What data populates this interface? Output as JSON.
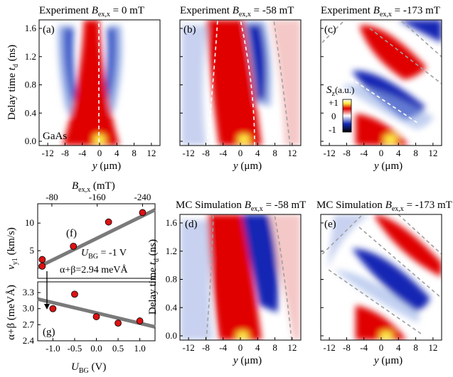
{
  "figure": {
    "panels": {
      "a": {
        "label": "(a)",
        "title_prefix": "Experiment",
        "b_value": "= 0 mT",
        "gaas": "GaAs"
      },
      "b": {
        "label": "(b)",
        "title_prefix": "Experiment",
        "b_value": "= -58 mT"
      },
      "c": {
        "label": "(c)",
        "title_prefix": "Experiment",
        "b_value": "= -173 mT"
      },
      "d": {
        "label": "(d)",
        "title_prefix": "MC Simulation",
        "b_value": "= -58 mT"
      },
      "e": {
        "label": "(e)",
        "title_prefix": "MC Simulation",
        "b_value": "= -173 mT"
      },
      "f": {
        "label": "(f)"
      },
      "g": {
        "label": "(g)"
      }
    },
    "b_symbol": "B",
    "b_sub": "ex,x",
    "delay_label_main": "Delay time",
    "delay_var": "t",
    "delay_sub": "d",
    "delay_unit": "(ns)",
    "y_var": "y",
    "y_unit": "(μm)",
    "y_ticks": [
      "-12",
      "-8",
      "-4",
      "0",
      "4",
      "8",
      "12"
    ],
    "t_ticks": [
      "0.0",
      "0.4",
      "0.8",
      "1.2",
      "1.6"
    ],
    "colorbar": {
      "title_var": "S",
      "title_sub": "z",
      "title_unit": "(a.u.)",
      "ticks": [
        "+1",
        "0",
        "-1"
      ]
    },
    "f_annotation": {
      "ubg": "= -1 V",
      "ubg_var": "U",
      "ubg_sub": "BG",
      "ab": "α+β=2.94 meVÅ"
    },
    "f_axis": {
      "ylabel_var": "v",
      "ylabel_sub": "y1",
      "ylabel_unit": "(km/s)",
      "top_label_unit": "(mT)",
      "top_ticks": [
        "-80",
        "-160",
        "-240"
      ],
      "y_ticks": [
        "5",
        "10"
      ]
    },
    "g_axis": {
      "ylabel": "α+β (meVÅ)",
      "y_ticks": [
        "2.4",
        "2.7",
        "3.0",
        "3.3"
      ],
      "x_ticks": [
        "-1.0",
        "-0.5",
        "0.0",
        "0.5",
        "1.0"
      ],
      "xlabel_var": "U",
      "xlabel_sub": "BG",
      "xlabel_unit": "(V)"
    },
    "colors": {
      "positive": "#e00000",
      "negative": "#1428b4",
      "peak": "#ffee44",
      "guide": "#a0a0a0",
      "fit": "#7a7a7a",
      "marker": "#dd1111"
    }
  },
  "chart_data": [
    {
      "type": "scatter",
      "title": "(f)",
      "xlabel": "B_ex,x (mT)",
      "ylabel": "v_y1 (km/s)",
      "x": [
        -63,
        -63,
        -118,
        -180,
        -240
      ],
      "y": [
        2.2,
        3.4,
        5.8,
        10.2,
        11.9
      ],
      "xlim": [
        -55,
        -262
      ],
      "ylim": [
        0,
        13.5
      ],
      "fit_line": {
        "x": [
          -55,
          -262
        ],
        "y": [
          2.0,
          12.4
        ]
      }
    },
    {
      "type": "scatter",
      "title": "(g)",
      "xlabel": "U_BG (V)",
      "ylabel": "α+β (meVÅ)",
      "x": [
        -1.0,
        -0.5,
        0.0,
        0.5,
        1.0
      ],
      "y": [
        3.0,
        3.27,
        2.85,
        2.73,
        2.77
      ],
      "xlim": [
        -1.35,
        1.35
      ],
      "ylim": [
        2.4,
        3.5
      ],
      "fit_line": {
        "x": [
          -1.35,
          1.35
        ],
        "y": [
          3.18,
          2.66
        ]
      }
    }
  ]
}
